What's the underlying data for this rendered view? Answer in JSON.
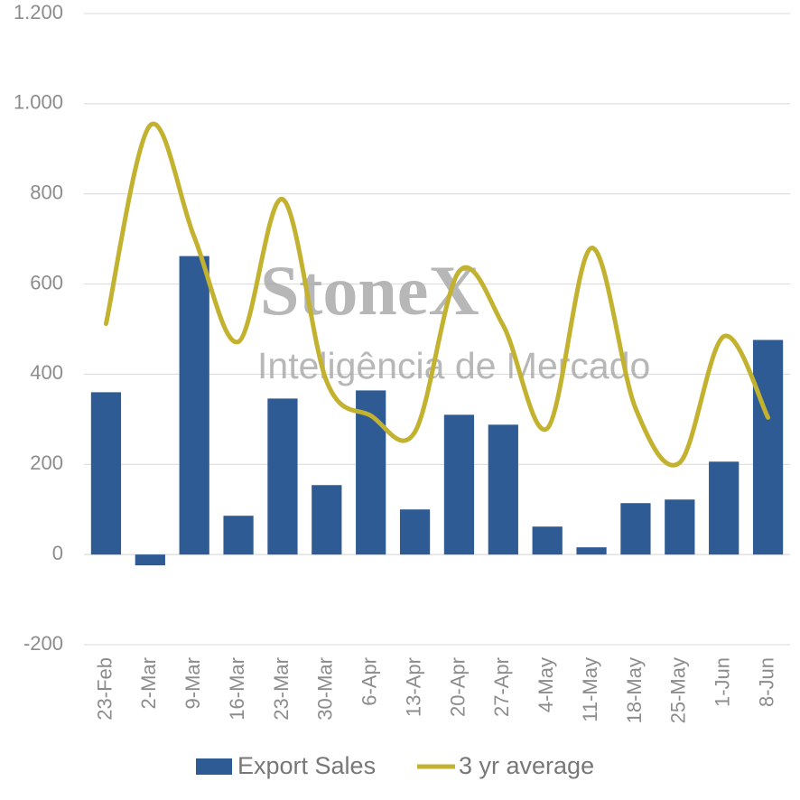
{
  "chart_data": {
    "type": "bar_line",
    "watermark": {
      "brand": "StoneX",
      "tagline": "Inteligência de Mercado"
    },
    "categories": [
      "23-Feb",
      "2-Mar",
      "9-Mar",
      "16-Mar",
      "23-Mar",
      "30-Mar",
      "6-Apr",
      "13-Apr",
      "20-Apr",
      "27-Apr",
      "4-May",
      "11-May",
      "18-May",
      "25-May",
      "1-Jun",
      "8-Jun"
    ],
    "series": [
      {
        "name": "Export Sales",
        "type": "bar",
        "color": "#2e5b93",
        "values": [
          360,
          -24,
          662,
          86,
          346,
          154,
          364,
          100,
          310,
          288,
          62,
          16,
          114,
          122,
          206,
          476
        ]
      },
      {
        "name": "3 yr average",
        "type": "line",
        "color": "#c2b22f",
        "values": [
          512,
          952,
          704,
          472,
          788,
          384,
          308,
          272,
          628,
          508,
          280,
          680,
          324,
          204,
          484,
          304
        ]
      }
    ],
    "ylim": [
      -200,
      1200
    ],
    "yticks": [
      -200,
      0,
      200,
      400,
      600,
      800,
      {
        "value": 1000,
        "label": "1.000"
      },
      {
        "value": 1200,
        "label": "1.200"
      }
    ],
    "grid": true,
    "smooth": true,
    "legend": "bottom"
  }
}
